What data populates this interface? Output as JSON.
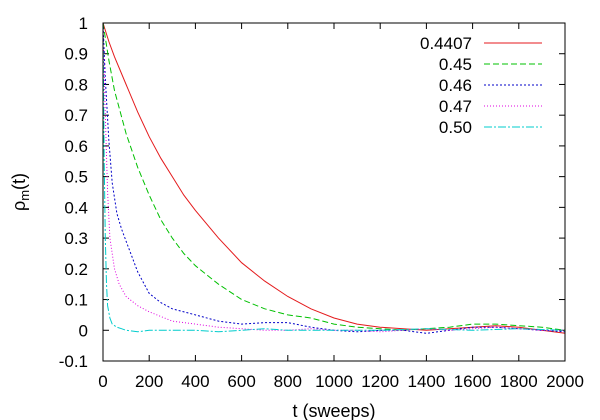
{
  "chart_data": {
    "type": "line",
    "xlabel": "t (sweeps)",
    "ylabel_main": "ρ",
    "ylabel_sub": "m",
    "ylabel_suffix": "(t)",
    "xlim": [
      0,
      2000
    ],
    "ylim": [
      -0.1,
      1
    ],
    "xticks": [
      "0",
      "200",
      "400",
      "600",
      "800",
      "1000",
      "1200",
      "1400",
      "1600",
      "1800",
      "2000"
    ],
    "yticks": [
      "-0.1",
      "0",
      "0.1",
      "0.2",
      "0.3",
      "0.4",
      "0.5",
      "0.6",
      "0.7",
      "0.8",
      "0.9",
      "1"
    ],
    "grid": false,
    "legend_position": "top-right",
    "series": [
      {
        "name": "0.4407",
        "color": "#e41a1c",
        "dash": "solid",
        "x": [
          0,
          25,
          50,
          100,
          150,
          200,
          250,
          300,
          350,
          400,
          500,
          600,
          700,
          800,
          900,
          1000,
          1100,
          1200,
          1300,
          1400,
          1500,
          1600,
          1700,
          1800,
          1900,
          2000
        ],
        "y": [
          1.0,
          0.94,
          0.89,
          0.8,
          0.71,
          0.63,
          0.56,
          0.5,
          0.44,
          0.39,
          0.3,
          0.22,
          0.16,
          0.11,
          0.07,
          0.04,
          0.02,
          0.01,
          0.005,
          0.0,
          0.005,
          0.01,
          0.015,
          0.01,
          0.0,
          -0.01
        ]
      },
      {
        "name": "0.45",
        "color": "#00c000",
        "dash": "6,3",
        "x": [
          0,
          25,
          50,
          100,
          150,
          200,
          250,
          300,
          350,
          400,
          500,
          600,
          700,
          800,
          900,
          1000,
          1100,
          1200,
          1300,
          1400,
          1500,
          1600,
          1700,
          1800,
          1900,
          2000
        ],
        "y": [
          1.0,
          0.88,
          0.78,
          0.64,
          0.53,
          0.44,
          0.36,
          0.3,
          0.25,
          0.21,
          0.15,
          0.1,
          0.07,
          0.05,
          0.04,
          0.02,
          0.01,
          0.005,
          0.0,
          0.005,
          0.01,
          0.02,
          0.02,
          0.015,
          0.01,
          0.0
        ]
      },
      {
        "name": "0.46",
        "color": "#0000c8",
        "dash": "2,2",
        "x": [
          0,
          10,
          25,
          40,
          60,
          80,
          100,
          150,
          200,
          250,
          300,
          400,
          500,
          600,
          700,
          800,
          900,
          1000,
          1100,
          1200,
          1300,
          1400,
          1500,
          1600,
          1700,
          1800,
          1900,
          2000
        ],
        "y": [
          1.0,
          0.82,
          0.62,
          0.48,
          0.38,
          0.33,
          0.29,
          0.19,
          0.12,
          0.09,
          0.07,
          0.05,
          0.03,
          0.02,
          0.025,
          0.025,
          0.01,
          0.0,
          -0.005,
          0.0,
          0.0,
          -0.01,
          0.0,
          0.01,
          0.01,
          0.005,
          0.0,
          -0.005
        ]
      },
      {
        "name": "0.47",
        "color": "#e000e0",
        "dash": "1,2",
        "x": [
          0,
          10,
          20,
          30,
          50,
          70,
          100,
          150,
          200,
          300,
          400,
          500,
          600,
          700,
          800,
          900,
          1000,
          1100,
          1200,
          1300,
          1400,
          1500,
          1600,
          1700,
          1800,
          1900,
          2000
        ],
        "y": [
          1.0,
          0.7,
          0.45,
          0.3,
          0.2,
          0.15,
          0.11,
          0.08,
          0.06,
          0.03,
          0.02,
          0.01,
          0.005,
          0.0,
          0.0,
          0.005,
          0.0,
          0.0,
          -0.005,
          0.0,
          0.005,
          0.0,
          0.005,
          0.01,
          0.005,
          0.0,
          0.0
        ]
      },
      {
        "name": "0.50",
        "color": "#00cccc",
        "dash": "8,2,2,2",
        "x": [
          0,
          5,
          10,
          15,
          20,
          30,
          40,
          60,
          80,
          100,
          150,
          200,
          300,
          400,
          500,
          600,
          700,
          800,
          900,
          1000,
          1200,
          1400,
          1600,
          1800,
          2000
        ],
        "y": [
          1.0,
          0.55,
          0.3,
          0.15,
          0.08,
          0.04,
          0.02,
          0.01,
          0.005,
          0.0,
          -0.005,
          0.0,
          0.0,
          0.0,
          -0.005,
          0.0,
          0.005,
          0.0,
          0.0,
          0.0,
          0.0,
          0.005,
          0.0,
          0.005,
          0.0
        ]
      }
    ]
  }
}
